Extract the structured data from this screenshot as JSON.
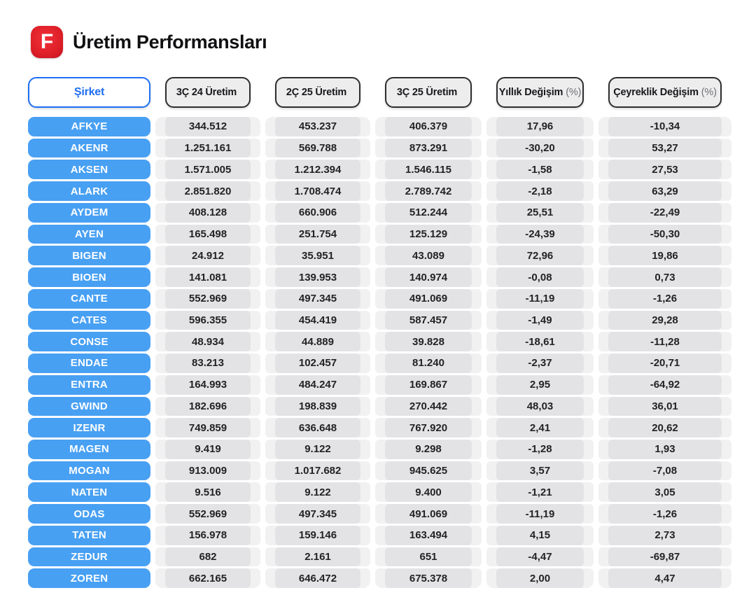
{
  "header": {
    "logo_letter": "F",
    "title": "Üretim Performansları"
  },
  "table_ui": {
    "company_header": "Şirket",
    "value_columns": [
      {
        "label": "3Ç 24 Üretim",
        "suffix": ""
      },
      {
        "label": "2Ç 25 Üretim",
        "suffix": ""
      },
      {
        "label": "3Ç 25 Üretim",
        "suffix": ""
      },
      {
        "label": "Yıllık Değişim",
        "suffix": "(%)"
      },
      {
        "label": "Çeyreklik Değişim",
        "suffix": "(%)"
      }
    ]
  },
  "colors": {
    "logo_red": "#e02129",
    "company_pill_blue": "#48a0f3",
    "company_header_blue": "#1e6ff2",
    "data_header_gray": "#ededee",
    "cell_gray": "#e3e3e5",
    "track_gray": "#f1f1f2"
  },
  "chart_data": {
    "type": "table",
    "title": "Üretim Performansları",
    "company_column_header": "Şirket",
    "value_column_headers": [
      "3Ç 24 Üretim",
      "2Ç 25 Üretim",
      "3Ç 25 Üretim",
      "Yıllık Değişim (%)",
      "Çeyreklik Değişim (%)"
    ],
    "rows": [
      {
        "company": "AFKYE",
        "values": [
          "344.512",
          "453.237",
          "406.379",
          "17,96",
          "-10,34"
        ]
      },
      {
        "company": "AKENR",
        "values": [
          "1.251.161",
          "569.788",
          "873.291",
          "-30,20",
          "53,27"
        ]
      },
      {
        "company": "AKSEN",
        "values": [
          "1.571.005",
          "1.212.394",
          "1.546.115",
          "-1,58",
          "27,53"
        ]
      },
      {
        "company": "ALARK",
        "values": [
          "2.851.820",
          "1.708.474",
          "2.789.742",
          "-2,18",
          "63,29"
        ]
      },
      {
        "company": "AYDEM",
        "values": [
          "408.128",
          "660.906",
          "512.244",
          "25,51",
          "-22,49"
        ]
      },
      {
        "company": "AYEN",
        "values": [
          "165.498",
          "251.754",
          "125.129",
          "-24,39",
          "-50,30"
        ]
      },
      {
        "company": "BIGEN",
        "values": [
          "24.912",
          "35.951",
          "43.089",
          "72,96",
          "19,86"
        ]
      },
      {
        "company": "BIOEN",
        "values": [
          "141.081",
          "139.953",
          "140.974",
          "-0,08",
          "0,73"
        ]
      },
      {
        "company": "CANTE",
        "values": [
          "552.969",
          "497.345",
          "491.069",
          "-11,19",
          "-1,26"
        ]
      },
      {
        "company": "CATES",
        "values": [
          "596.355",
          "454.419",
          "587.457",
          "-1,49",
          "29,28"
        ]
      },
      {
        "company": "CONSE",
        "values": [
          "48.934",
          "44.889",
          "39.828",
          "-18,61",
          "-11,28"
        ]
      },
      {
        "company": "ENDAE",
        "values": [
          "83.213",
          "102.457",
          "81.240",
          "-2,37",
          "-20,71"
        ]
      },
      {
        "company": "ENTRA",
        "values": [
          "164.993",
          "484.247",
          "169.867",
          "2,95",
          "-64,92"
        ]
      },
      {
        "company": "GWIND",
        "values": [
          "182.696",
          "198.839",
          "270.442",
          "48,03",
          "36,01"
        ]
      },
      {
        "company": "IZENR",
        "values": [
          "749.859",
          "636.648",
          "767.920",
          "2,41",
          "20,62"
        ]
      },
      {
        "company": "MAGEN",
        "values": [
          "9.419",
          "9.122",
          "9.298",
          "-1,28",
          "1,93"
        ]
      },
      {
        "company": "MOGAN",
        "values": [
          "913.009",
          "1.017.682",
          "945.625",
          "3,57",
          "-7,08"
        ]
      },
      {
        "company": "NATEN",
        "values": [
          "9.516",
          "9.122",
          "9.400",
          "-1,21",
          "3,05"
        ]
      },
      {
        "company": "ODAS",
        "values": [
          "552.969",
          "497.345",
          "491.069",
          "-11,19",
          "-1,26"
        ]
      },
      {
        "company": "TATEN",
        "values": [
          "156.978",
          "159.146",
          "163.494",
          "4,15",
          "2,73"
        ]
      },
      {
        "company": "ZEDUR",
        "values": [
          "682",
          "2.161",
          "651",
          "-4,47",
          "-69,87"
        ]
      },
      {
        "company": "ZOREN",
        "values": [
          "662.165",
          "646.472",
          "675.378",
          "2,00",
          "4,47"
        ]
      }
    ]
  }
}
